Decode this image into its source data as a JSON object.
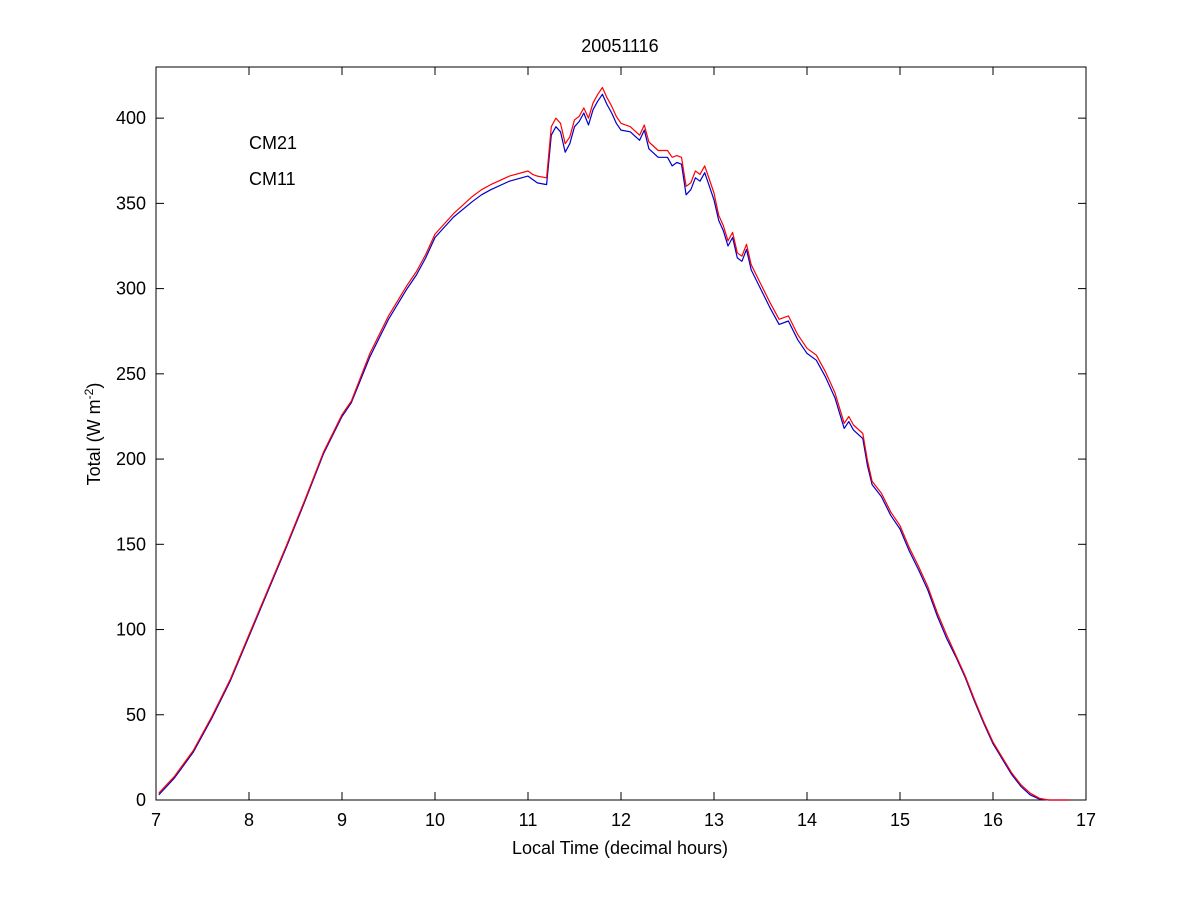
{
  "chart_data": {
    "type": "line",
    "title": "20051116",
    "xlabel": "Local Time (decimal hours)",
    "ylabel": {
      "text": "Total (W m",
      "superscript": "-2",
      "suffix": ")"
    },
    "xlim": [
      7,
      17
    ],
    "ylim": [
      0,
      430
    ],
    "xticks": [
      7,
      8,
      9,
      10,
      11,
      12,
      13,
      14,
      15,
      16,
      17
    ],
    "yticks": [
      0,
      50,
      100,
      150,
      200,
      250,
      300,
      350,
      400
    ],
    "grid": false,
    "legend_position": "top-left",
    "series": [
      {
        "name": "CM21",
        "color": "#0000cc",
        "x": [
          7.03,
          7.2,
          7.4,
          7.6,
          7.8,
          8.0,
          8.2,
          8.4,
          8.6,
          8.8,
          9.0,
          9.1,
          9.3,
          9.5,
          9.7,
          9.8,
          9.9,
          10.0,
          10.2,
          10.4,
          10.5,
          10.6,
          10.8,
          11.0,
          11.05,
          11.1,
          11.2,
          11.25,
          11.3,
          11.35,
          11.4,
          11.45,
          11.5,
          11.55,
          11.6,
          11.65,
          11.7,
          11.75,
          11.8,
          11.85,
          11.9,
          11.95,
          12.0,
          12.1,
          12.2,
          12.25,
          12.3,
          12.4,
          12.5,
          12.55,
          12.6,
          12.65,
          12.7,
          12.75,
          12.8,
          12.85,
          12.9,
          12.95,
          13.0,
          13.05,
          13.1,
          13.15,
          13.2,
          13.25,
          13.3,
          13.35,
          13.4,
          13.5,
          13.6,
          13.7,
          13.8,
          13.9,
          14.0,
          14.1,
          14.2,
          14.3,
          14.4,
          14.45,
          14.5,
          14.6,
          14.65,
          14.7,
          14.8,
          14.9,
          15.0,
          15.1,
          15.2,
          15.3,
          15.4,
          15.5,
          15.6,
          15.7,
          15.8,
          15.9,
          16.0,
          16.1,
          16.2,
          16.3,
          16.4,
          16.5,
          16.6,
          16.7,
          16.82
        ],
        "y": [
          3,
          13,
          28,
          48,
          70,
          96,
          122,
          148,
          175,
          203,
          225,
          233,
          260,
          282,
          300,
          308,
          318,
          330,
          342,
          351,
          355,
          358,
          363,
          366,
          364,
          362,
          361,
          390,
          395,
          392,
          380,
          385,
          395,
          398,
          403,
          396,
          405,
          410,
          414,
          408,
          403,
          397,
          393,
          392,
          387,
          393,
          382,
          377,
          377,
          372,
          374,
          373,
          355,
          358,
          365,
          363,
          368,
          360,
          352,
          340,
          334,
          325,
          330,
          318,
          316,
          323,
          311,
          300,
          289,
          279,
          281,
          270,
          262,
          258,
          248,
          236,
          218,
          222,
          217,
          212,
          196,
          185,
          178,
          167,
          159,
          146,
          135,
          123,
          108,
          95,
          84,
          72,
          58,
          45,
          33,
          24,
          15,
          8,
          3,
          0.5,
          0,
          0,
          0
        ]
      },
      {
        "name": "CM11",
        "color": "#ff0000",
        "x": [
          7.03,
          7.2,
          7.4,
          7.6,
          7.8,
          8.0,
          8.2,
          8.4,
          8.6,
          8.8,
          9.0,
          9.1,
          9.3,
          9.5,
          9.7,
          9.8,
          9.9,
          10.0,
          10.2,
          10.4,
          10.5,
          10.6,
          10.8,
          11.0,
          11.05,
          11.1,
          11.2,
          11.25,
          11.3,
          11.35,
          11.4,
          11.45,
          11.5,
          11.55,
          11.6,
          11.65,
          11.7,
          11.75,
          11.8,
          11.85,
          11.9,
          11.95,
          12.0,
          12.1,
          12.2,
          12.25,
          12.3,
          12.4,
          12.5,
          12.55,
          12.6,
          12.65,
          12.7,
          12.75,
          12.8,
          12.85,
          12.9,
          12.95,
          13.0,
          13.05,
          13.1,
          13.15,
          13.2,
          13.25,
          13.3,
          13.35,
          13.4,
          13.5,
          13.6,
          13.7,
          13.8,
          13.9,
          14.0,
          14.1,
          14.2,
          14.3,
          14.4,
          14.45,
          14.5,
          14.6,
          14.65,
          14.7,
          14.8,
          14.9,
          15.0,
          15.1,
          15.2,
          15.3,
          15.4,
          15.5,
          15.6,
          15.7,
          15.8,
          15.9,
          16.0,
          16.1,
          16.2,
          16.3,
          16.4,
          16.5,
          16.6,
          16.7,
          16.82
        ],
        "y": [
          4,
          14,
          29,
          49,
          71,
          97,
          123,
          149,
          176,
          204,
          226,
          234,
          262,
          284,
          302,
          310,
          320,
          332,
          344,
          354,
          358,
          361,
          366,
          369,
          367,
          366,
          365,
          395,
          400,
          397,
          385,
          389,
          399,
          401,
          406,
          400,
          409,
          414,
          418,
          412,
          407,
          401,
          397,
          395,
          390,
          396,
          386,
          381,
          381,
          377,
          378,
          377,
          360,
          362,
          369,
          367,
          372,
          364,
          356,
          343,
          337,
          328,
          333,
          321,
          319,
          326,
          314,
          303,
          292,
          282,
          284,
          273,
          265,
          261,
          251,
          239,
          221,
          225,
          220,
          215,
          199,
          187,
          180,
          169,
          161,
          148,
          137,
          125,
          110,
          97,
          85,
          73,
          59,
          46,
          34,
          25,
          16,
          9,
          4,
          1,
          0,
          0,
          0
        ]
      }
    ]
  }
}
